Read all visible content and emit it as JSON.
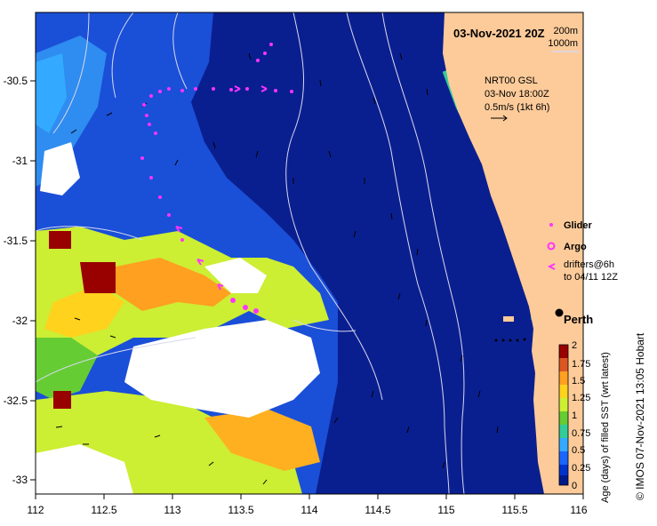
{
  "map": {
    "date_title": "03-Nov-2021 20Z",
    "isobath_labels": [
      "200m",
      "1000m"
    ],
    "current_info": {
      "product": "NRT00 GSL",
      "time": "03-Nov 18:00Z",
      "scale": "0.5m/s (1kt 6h)"
    },
    "legend": {
      "glider": "Glider",
      "argo": "Argo",
      "drifters_line1": "drifters@6h",
      "drifters_line2": "to 04/11 12Z"
    },
    "city": "Perth",
    "credit": "© IMOS 07-Nov-2021 13:05 Hobart",
    "lon_ticks": [
      "112",
      "112.5",
      "113",
      "113.5",
      "114",
      "114.5",
      "115",
      "115.5",
      "116"
    ],
    "lat_ticks": [
      "-30.5",
      "-31",
      "-31.5",
      "-32",
      "-32.5",
      "-33"
    ],
    "extent": {
      "lon": [
        112,
        116
      ],
      "lat": [
        -33.1,
        -30.1
      ]
    },
    "colorbar": {
      "ticks": [
        "2",
        "1.75",
        "1.5",
        "1.25",
        "1",
        "0.75",
        "0.5",
        "0.25",
        "0"
      ],
      "label": "Age (days) of filled SST (wrt latest)",
      "colors": [
        "#001a8c",
        "#0033cc",
        "#1a66ff",
        "#33aaff",
        "#33cc99",
        "#66cc33",
        "#ccee33",
        "#ffd21e",
        "#ffa020",
        "#dd5522",
        "#990000"
      ]
    },
    "colors": {
      "land": "#fdcb9a",
      "deep_ocean": "#0a1f8f",
      "glider": "#ff33ff",
      "argo": "#ff33ff",
      "drifter": "#ff33ff"
    }
  }
}
